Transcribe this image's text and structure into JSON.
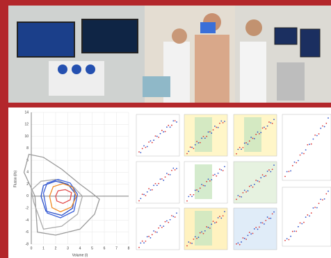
{
  "chart_data": {
    "type": "line",
    "xlabel": "Volume (l)",
    "ylabel": "Flusso (l/s)",
    "xlim": [
      0,
      8
    ],
    "ylim": [
      -8,
      14
    ],
    "xticks": [
      0,
      1,
      2,
      3,
      4,
      5,
      6,
      7,
      8
    ],
    "yticks": [
      -8,
      -6,
      -4,
      -2,
      0,
      2,
      4,
      6,
      8,
      10,
      12,
      14
    ],
    "grid": true,
    "series": [
      {
        "color": "#999999",
        "x": [
          0.3,
          -0.6,
          -0.2,
          1,
          2.5,
          4,
          5,
          5.6,
          5.2,
          4,
          2,
          0.5,
          0.3
        ],
        "values": [
          0,
          4,
          7,
          6.5,
          4.5,
          2,
          0.5,
          -0.5,
          -3,
          -5.5,
          -6.5,
          -6,
          0
        ]
      },
      {
        "color": "#aaaaaa",
        "x": [
          0.2,
          0,
          0.8,
          2,
          3.5,
          4.2,
          3.8,
          2.5,
          1,
          0.2
        ],
        "values": [
          -1,
          1,
          2.5,
          2.8,
          1.5,
          0,
          -3,
          -5,
          -5.5,
          -1
        ]
      },
      {
        "color": "#2a4fc9",
        "x": [
          0.8,
          1,
          2,
          3,
          3.6,
          3.4,
          2.5,
          1.2,
          0.8
        ],
        "values": [
          0,
          1.8,
          2.5,
          2,
          0.5,
          -2,
          -3.2,
          -2.5,
          0
        ]
      },
      {
        "color": "#3a5fd9",
        "x": [
          1,
          1.3,
          2.2,
          3.2,
          3.8,
          3.5,
          2.4,
          1.3,
          1
        ],
        "values": [
          0.5,
          2.2,
          2.8,
          2.2,
          0.3,
          -2.5,
          -3.6,
          -2.8,
          0.5
        ]
      },
      {
        "color": "#f08a24",
        "x": [
          1.5,
          1.8,
          2.6,
          3.4,
          3.7,
          3.3,
          2.4,
          1.7,
          1.5
        ],
        "values": [
          0,
          1.6,
          2.1,
          1.5,
          0,
          -1.8,
          -2.6,
          -1.9,
          0
        ]
      },
      {
        "color": "#e24a4a",
        "x": [
          2,
          2.2,
          2.8,
          3.3,
          3.2,
          2.6,
          2.1,
          2
        ],
        "values": [
          0,
          0.9,
          1.1,
          0.6,
          -0.6,
          -1.2,
          -0.8,
          0
        ]
      }
    ]
  }
}
